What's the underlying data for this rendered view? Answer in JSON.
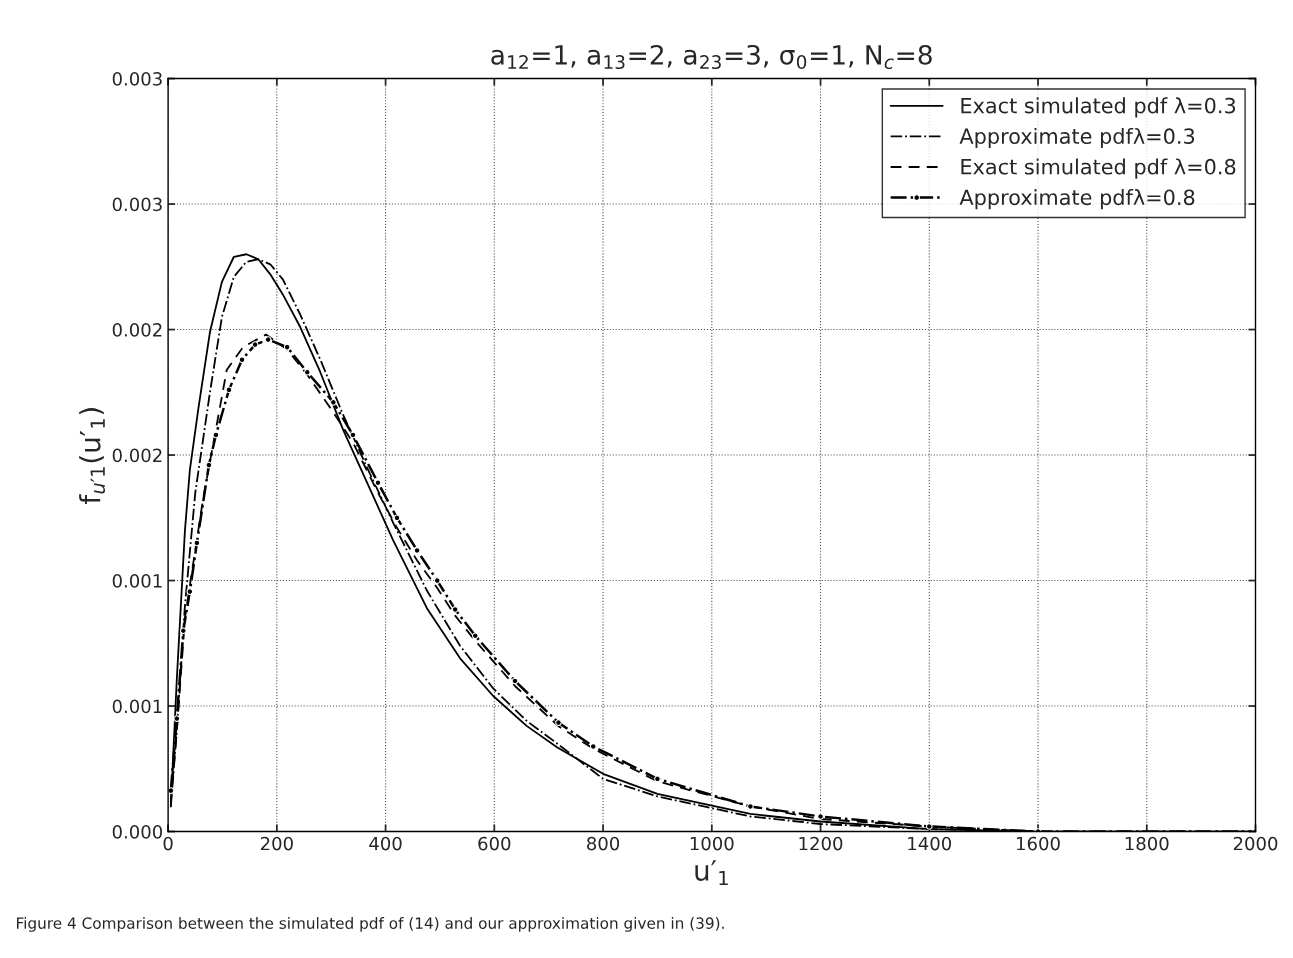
{
  "chart_data": {
    "type": "line",
    "title": "a$_{12}$=1, a$_{13}$=2, a$_{23}$=3, σ$_{0}$=1, N$_{c}$=8",
    "xlabel": "u′$_{1}$",
    "ylabel": "f$_{u′1}$(u′$_{1}$)",
    "annotations": [
      "Figure 4 Comparison between the simulated pdf of (14) and our approximation given in (39)."
    ],
    "xlim": [
      0,
      2000
    ],
    "xticks": [
      0,
      200,
      400,
      600,
      800,
      1000,
      1200,
      1400,
      1600,
      1800,
      2000
    ],
    "ylim": [
      0,
      0.003
    ],
    "yticks": [
      {
        "value": 0,
        "label": "0.000"
      },
      {
        "value": 0.0005,
        "label": "0.001"
      },
      {
        "value": 0.001,
        "label": "0.001"
      },
      {
        "value": 0.0015,
        "label": "0.002"
      },
      {
        "value": 0.002,
        "label": "0.002"
      },
      {
        "value": 0.0025,
        "label": "0.003"
      },
      {
        "value": 0.003,
        "label": "0.003"
      }
    ],
    "grid": true,
    "legend": "top right",
    "series": [
      {
        "name": "Exact simulated pdf λ=0.3",
        "color": "#000000",
        "line_style": "solid",
        "x": [
          5,
          16,
          31,
          40,
          56,
          77,
          99,
          121,
          144,
          166,
          188,
          211,
          243,
          280,
          322,
          366,
          414,
          476,
          537,
          598,
          660,
          716,
          800,
          900,
          1071,
          1200,
          1400,
          1600,
          2000
        ],
        "values": [
          0.0001,
          0.000606,
          0.0012,
          0.00144,
          0.00169,
          0.00199,
          0.00219,
          0.00229,
          0.0023,
          0.00228,
          0.00222,
          0.00214,
          0.00201,
          0.00183,
          0.0016,
          0.00139,
          0.00116,
          0.00089,
          0.00069,
          0.00054,
          0.00042,
          0.000335,
          0.00023,
          0.00015,
          7e-05,
          4e-05,
          1e-05,
          0.0,
          0.0
        ]
      },
      {
        "name": "Approximate pdfλ=0.3",
        "color": "#000000",
        "line_style": "dashdot",
        "x": [
          5,
          16,
          31,
          50,
          77,
          99,
          121,
          144,
          166,
          188,
          211,
          243,
          280,
          322,
          366,
          414,
          476,
          537,
          598,
          660,
          716,
          800,
          900,
          1071,
          1200,
          1400,
          1600,
          2000
        ],
        "values": [
          0.0001,
          0.0004,
          0.0009,
          0.00135,
          0.00175,
          0.00205,
          0.00221,
          0.00227,
          0.00228,
          0.00226,
          0.0022,
          0.00206,
          0.00188,
          0.00166,
          0.00145,
          0.00123,
          0.00096,
          0.00074,
          0.00057,
          0.00044,
          0.00035,
          0.00021,
          0.00014,
          6e-05,
          3e-05,
          1e-05,
          0.0,
          0.0
        ]
      },
      {
        "name": "Exact simulated pdf λ=0.8",
        "color": "#000000",
        "line_style": "dashed",
        "x": [
          5,
          16,
          31,
          40,
          64,
          108,
          138,
          180,
          219,
          256,
          304,
          340,
          386,
          421,
          458,
          495,
          528,
          565,
          638,
          718,
          782,
          900,
          1071,
          1200,
          1400,
          1600
        ],
        "values": [
          0.00012,
          0.0004,
          0.00085,
          0.00098,
          0.00132,
          0.00184,
          0.00193,
          0.00198,
          0.00192,
          0.00182,
          0.00167,
          0.00155,
          0.00135,
          0.00121,
          0.00108,
          0.00097,
          0.00086,
          0.00076,
          0.00058,
          0.00042,
          0.00033,
          0.0002,
          0.0001,
          5e-05,
          2e-05,
          0.0
        ]
      },
      {
        "name": "Approximate pdfλ=0.8",
        "color": "#000000",
        "line_style": "dashdot",
        "marker": "circle",
        "x": [
          5,
          16,
          28,
          40,
          53,
          75,
          88,
          112,
          136,
          160,
          184,
          219,
          256,
          304,
          340,
          386,
          421,
          458,
          495,
          528,
          565,
          638,
          718,
          782,
          900,
          1071,
          1200,
          1400,
          1600,
          2000
        ],
        "values": [
          0.000163,
          0.00045,
          0.0008,
          0.000956,
          0.00115,
          0.00146,
          0.00158,
          0.00176,
          0.00188,
          0.00194,
          0.00196,
          0.00193,
          0.00183,
          0.00171,
          0.00158,
          0.00139,
          0.00125,
          0.00112,
          0.001,
          0.000885,
          0.00078,
          0.0006,
          0.000434,
          0.000339,
          0.00021,
          0.0001,
          6e-05,
          2e-05,
          0.0,
          0.0
        ]
      }
    ]
  }
}
